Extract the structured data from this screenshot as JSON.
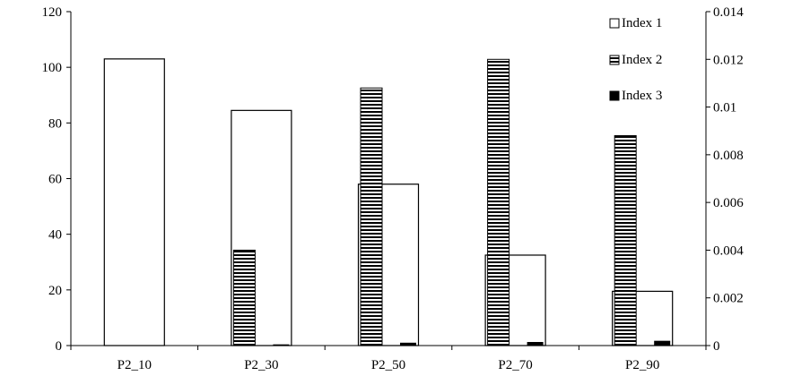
{
  "chart_data": {
    "type": "bar",
    "categories": [
      "P2_10",
      "P2_30",
      "P2_50",
      "P2_70",
      "P2_90"
    ],
    "series": [
      {
        "name": "Index 1",
        "axis": "left",
        "pattern": "open",
        "values": [
          103,
          84.5,
          58,
          32.5,
          19.5
        ]
      },
      {
        "name": "Index 2",
        "axis": "right",
        "pattern": "horizontal-stripes",
        "values": [
          0,
          0.004,
          0.0108,
          0.012,
          0.0088
        ]
      },
      {
        "name": "Index 3",
        "axis": "right",
        "pattern": "solid-black",
        "values": [
          0,
          5e-05,
          0.00012,
          0.00015,
          0.0002
        ]
      }
    ],
    "y_left": {
      "ylim": [
        0,
        120
      ],
      "ticks": [
        "0",
        "20",
        "40",
        "60",
        "80",
        "100",
        "120"
      ]
    },
    "y_right": {
      "ylim": [
        0,
        0.014
      ],
      "ticks": [
        "0",
        "0.002",
        "0.004",
        "0.006",
        "0.008",
        "0.01",
        "0.012",
        "0.014"
      ]
    },
    "grid": false,
    "legend": "top-right",
    "colors": {
      "stroke": "#000000",
      "fill": "#ffffff"
    }
  }
}
